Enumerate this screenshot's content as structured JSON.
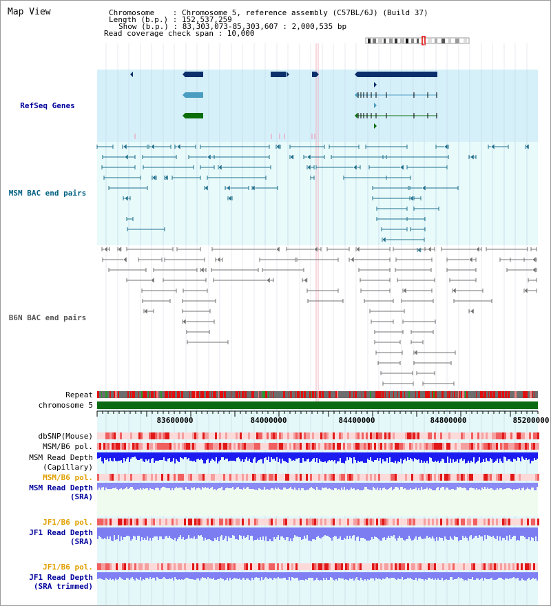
{
  "map_title": "Map View",
  "info": {
    "chromosome": "Chromosome    : Chromosome 5, reference assembly (C57BL/6J) (Build 37)",
    "length": "Length (b.p.) : 152,537,259",
    "show": "Show (b.p.) : 83,303,073-85,303,607 : 2,000,535 bp",
    "coverage": "Read coverage check span : 10,000"
  },
  "tracks": {
    "refseq": "RefSeq Genes",
    "msm_bac": "MSM BAC end pairs",
    "b6n_bac": "B6N BAC end pairs",
    "repeat": "Repeat",
    "chromosome": "chromosome 5",
    "dbsnp": "dbSNP(Mouse)",
    "msm_b6_pol_1": "MSM/B6 pol.",
    "msm_read_depth_1": "MSM Read Depth",
    "msm_read_depth_1_sub": "(Capillary)",
    "msm_b6_pol_2": "MSM/B6 pol.",
    "msm_read_depth_2": "MSM Read Depth",
    "msm_read_depth_2_sub": "(SRA)",
    "jf1_b6_pol_1": "JF1/B6 pol.",
    "jf1_read_depth_1": "JF1 Read Depth",
    "jf1_read_depth_1_sub": "(SRA)",
    "jf1_b6_pol_2": "JF1/B6 pol.",
    "jf1_read_depth_2": "JF1 Read Depth",
    "jf1_read_depth_2_sub": "(SRA trimmed)"
  },
  "ticks": [
    "83600000",
    "84000000",
    "84400000",
    "84800000",
    "85200000"
  ],
  "colors": {
    "refseq_bg": "#d6f0fa",
    "bac_bg": "#e8fafa",
    "gene_dark": "#0a2f6b",
    "gene_teal": "#4a9cc0",
    "gene_green": "#0a6e0a",
    "msm_pair": "#1d6f8c",
    "b6n_pair": "#707070",
    "chrom_bar": "#0b6b12",
    "depth_blue": "#1c1cf0",
    "depth_light": "#7d7df2",
    "label_navy": "#00009c",
    "label_teal": "#006080",
    "label_orange": "#e0a000"
  }
}
